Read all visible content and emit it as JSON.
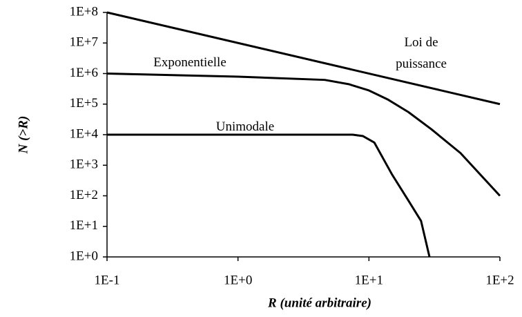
{
  "chart_data": {
    "type": "line",
    "xlabel": "R (unité arbitraire)",
    "ylabel": "N (>R)",
    "xscale": "log",
    "yscale": "log",
    "xlim": [
      0.1,
      100
    ],
    "ylim": [
      1,
      100000000
    ],
    "xticks": [
      {
        "value": 0.1,
        "label": "1E-1"
      },
      {
        "value": 1,
        "label": "1E+0"
      },
      {
        "value": 10,
        "label": "1E+1"
      },
      {
        "value": 100,
        "label": "1E+2"
      }
    ],
    "yticks": [
      {
        "value": 1,
        "label": "1E+0"
      },
      {
        "value": 10,
        "label": "1E+1"
      },
      {
        "value": 100,
        "label": "1E+2"
      },
      {
        "value": 1000,
        "label": "1E+3"
      },
      {
        "value": 10000,
        "label": "1E+4"
      },
      {
        "value": 100000,
        "label": "1E+5"
      },
      {
        "value": 1000000,
        "label": "1E+6"
      },
      {
        "value": 10000000,
        "label": "1E+7"
      },
      {
        "value": 100000000,
        "label": "1E+8"
      }
    ],
    "series": [
      {
        "name": "Loi de puissance",
        "color": "#000000",
        "x": [
          0.1,
          100
        ],
        "values": [
          100000000,
          100000
        ]
      },
      {
        "name": "Exponentielle",
        "color": "#000000",
        "x": [
          0.1,
          1,
          4.6,
          7,
          10,
          14,
          20,
          30,
          50,
          100
        ],
        "values": [
          1000000,
          790000,
          620000,
          450000,
          280000,
          140000,
          55000,
          15000,
          2500,
          100
        ]
      },
      {
        "name": "Unimodale",
        "color": "#000000",
        "x": [
          0.1,
          7.5,
          9,
          11,
          15,
          20,
          25,
          29
        ],
        "values": [
          10000,
          10000,
          9000,
          5500,
          500,
          70,
          15,
          1
        ]
      }
    ]
  }
}
